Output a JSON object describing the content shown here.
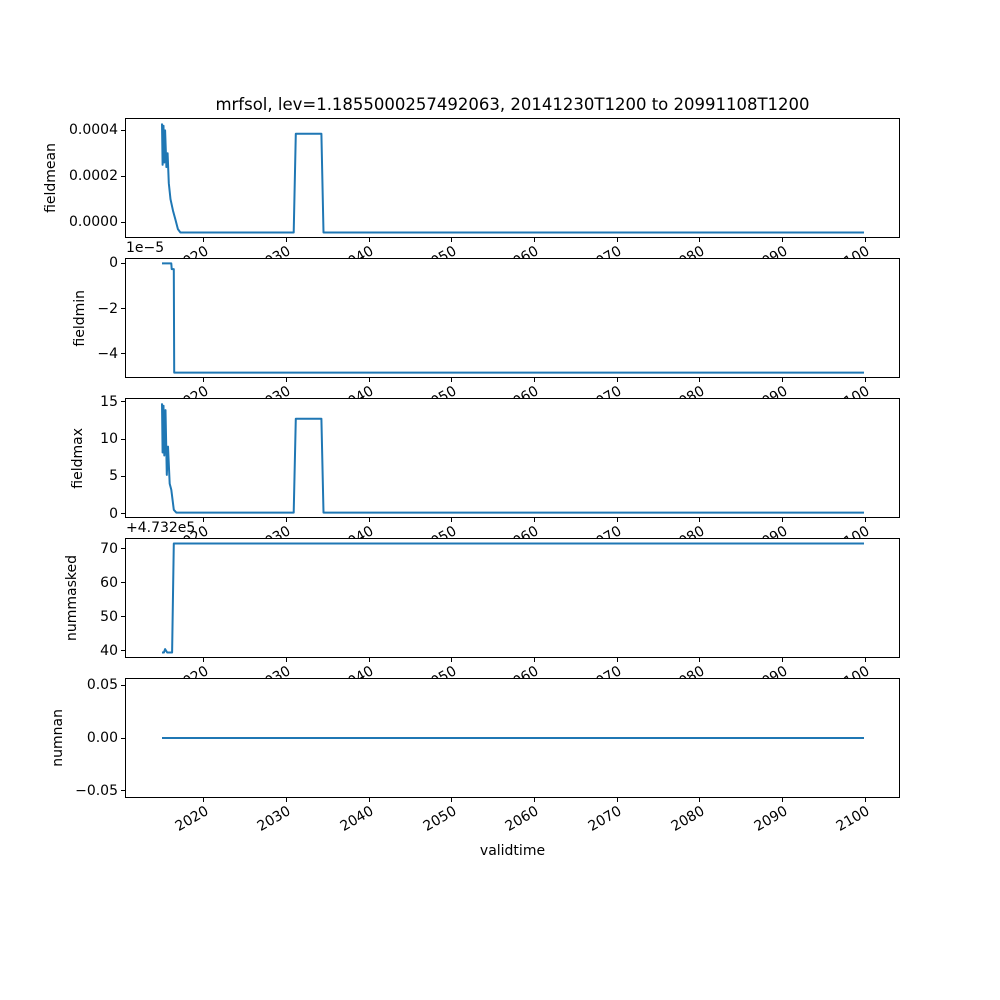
{
  "figure": {
    "title": "mrfsol, lev=1.1855000257492063, 20141230T1200 to 20991108T1200",
    "xlabel": "validtime",
    "line_color": "#1f77b4",
    "background_color": "#ffffff",
    "spine_color": "#000000"
  },
  "x_axis": {
    "xlim": [
      2010.5,
      2104.2
    ],
    "tick_values": [
      2020,
      2030,
      2040,
      2050,
      2060,
      2070,
      2080,
      2090,
      2100
    ],
    "tick_labels": [
      "2020",
      "2030",
      "2040",
      "2050",
      "2060",
      "2070",
      "2080",
      "2090",
      "2100"
    ],
    "tick_rotation_deg": 30
  },
  "chart_data": [
    {
      "type": "line",
      "ylabel": "fieldmean",
      "offset_text": "",
      "ylim": [
        -6.9e-05,
        0.000454
      ],
      "ytick_values": [
        0,
        0.0002,
        0.0004
      ],
      "ytick_labels": [
        "0.0000",
        "0.0002",
        "0.0004"
      ],
      "x": [
        2014.97,
        2015.05,
        2015.15,
        2015.25,
        2015.35,
        2015.5,
        2015.65,
        2015.8,
        2016.0,
        2016.3,
        2016.6,
        2016.9,
        2017.2,
        2030.9,
        2031.15,
        2034.25,
        2034.5,
        2099.85
      ],
      "y": [
        0.00043,
        0.00025,
        0.00042,
        0.00026,
        0.0004,
        0.00024,
        0.0003,
        0.00017,
        0.0001,
        5e-05,
        1e-05,
        -3e-05,
        -4.5e-05,
        -4.5e-05,
        0.000385,
        0.000385,
        -4.5e-05,
        -4.5e-05
      ]
    },
    {
      "type": "line",
      "ylabel": "fieldmin",
      "offset_text": "1e−5",
      "ylim": [
        -5.07e-05,
        2.4e-06
      ],
      "ytick_values": [
        -4e-05,
        -2e-05,
        0
      ],
      "ytick_labels": [
        "−4",
        "−2",
        "0"
      ],
      "x": [
        2014.97,
        2016.1,
        2016.15,
        2016.4,
        2016.45,
        2099.85
      ],
      "y": [
        0,
        0,
        -2.5e-06,
        -2.5e-06,
        -4.83e-05,
        -4.83e-05
      ]
    },
    {
      "type": "line",
      "ylabel": "fieldmax",
      "offset_text": "",
      "ylim": [
        -0.6,
        15.53
      ],
      "ytick_values": [
        0,
        5,
        10,
        15
      ],
      "ytick_labels": [
        "0",
        "5",
        "10",
        "15"
      ],
      "x": [
        2014.97,
        2015.05,
        2015.15,
        2015.25,
        2015.4,
        2015.55,
        2015.7,
        2015.9,
        2016.1,
        2016.4,
        2016.7,
        2030.9,
        2031.15,
        2034.25,
        2034.5,
        2099.85
      ],
      "y": [
        14.8,
        8.2,
        14.5,
        7.8,
        13.9,
        5.2,
        9.0,
        4.0,
        3.2,
        0.5,
        0.13,
        0.13,
        12.75,
        12.75,
        0.13,
        0.13
      ]
    },
    {
      "type": "line",
      "ylabel": "nummasked",
      "offset_text": "+4.732e5",
      "ylim": [
        473237.9,
        473273.1
      ],
      "ytick_values": [
        473240,
        473250,
        473260,
        473270
      ],
      "ytick_labels": [
        "40",
        "50",
        "60",
        "70"
      ],
      "x": [
        2014.97,
        2015.2,
        2015.35,
        2015.6,
        2016.2,
        2016.4,
        2099.85
      ],
      "y": [
        473239.5,
        473239.5,
        473240.5,
        473239.5,
        473239.5,
        473271.5,
        473271.5
      ]
    },
    {
      "type": "line",
      "ylabel": "numnan",
      "offset_text": "",
      "ylim": [
        -0.057,
        0.057
      ],
      "ytick_values": [
        -0.05,
        0,
        0.05
      ],
      "ytick_labels": [
        "−0.05",
        "0.00",
        "0.05"
      ],
      "x": [
        2014.97,
        2099.85
      ],
      "y": [
        0,
        0
      ]
    }
  ]
}
